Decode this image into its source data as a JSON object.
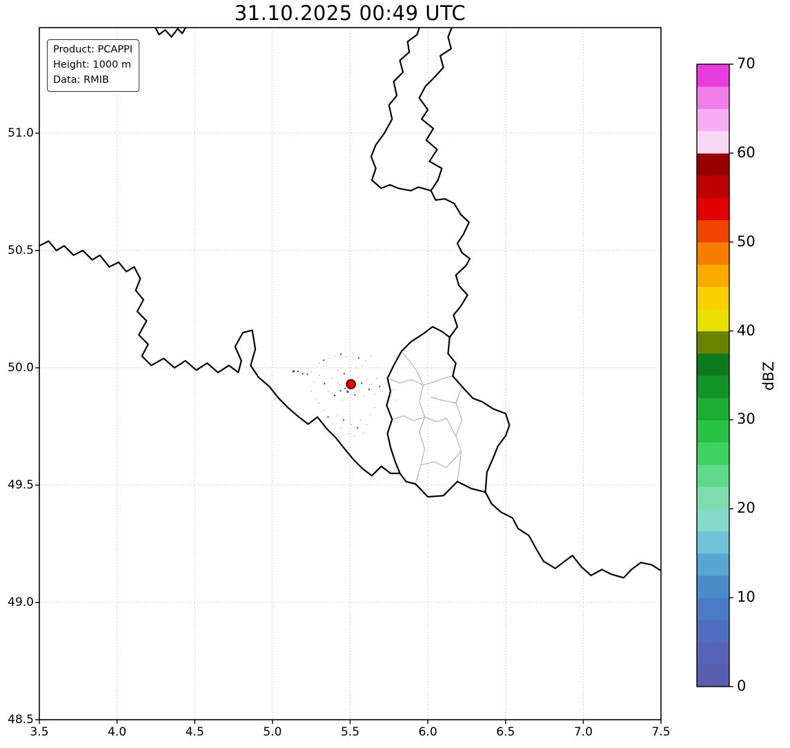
{
  "title": "31.10.2025 00:49 UTC",
  "info_box": {
    "lines": [
      "Product: PCAPPI",
      "Height: 1000 m",
      "Data: RMIB"
    ]
  },
  "chart_data": {
    "type": "radar-reflectivity-map",
    "title": "31.10.2025 00:49 UTC",
    "xlim": [
      3.5,
      7.5
    ],
    "ylim": [
      48.5,
      51.45
    ],
    "x_ticks": {
      "values": [
        3.5,
        4.0,
        4.5,
        5.0,
        5.5,
        6.0,
        6.5,
        7.0,
        7.5
      ],
      "labels": [
        "3.5",
        "4.0",
        "4.5",
        "5.0",
        "5.5",
        "6.0",
        "6.5",
        "7.0",
        "7.5"
      ]
    },
    "y_ticks": {
      "values": [
        48.5,
        49.0,
        49.5,
        50.0,
        50.5,
        51.0
      ],
      "labels": [
        "48.5",
        "49.0",
        "49.5",
        "50.0",
        "50.5",
        "51.0"
      ]
    },
    "grid": {
      "style": "dotted",
      "color": "#b5b5b5"
    },
    "colorbar": {
      "label": "dBZ",
      "min": 0,
      "max": 70,
      "step": 2.5,
      "tick_values": [
        0,
        10,
        20,
        30,
        40,
        50,
        60,
        70
      ],
      "tick_labels": [
        "0",
        "10",
        "20",
        "30",
        "40",
        "50",
        "60",
        "70"
      ],
      "colors": [
        "#585fae",
        "#5663b8",
        "#4f6ec1",
        "#4a7bc4",
        "#4a8cc9",
        "#57a6d4",
        "#6fc4d9",
        "#85d9cd",
        "#7fdcae",
        "#5fd98a",
        "#3ed160",
        "#28c245",
        "#1cab33",
        "#129427",
        "#0c7a1d",
        "#6a8200",
        "#e8e000",
        "#fcd000",
        "#fcaa00",
        "#f97e00",
        "#f04400",
        "#e00000",
        "#c00000",
        "#980000",
        "#f9d7f7",
        "#f7aef3",
        "#f07fe9",
        "#e83ddd"
      ]
    },
    "map": {
      "national_border_color": "#000000",
      "admin_border_color": "#b3b3b3",
      "national_borders": [
        [
          [
            3.5,
            50.52
          ],
          [
            3.56,
            50.54
          ],
          [
            3.61,
            50.5
          ],
          [
            3.66,
            50.52
          ],
          [
            3.72,
            50.48
          ],
          [
            3.78,
            50.5
          ],
          [
            3.84,
            50.46
          ],
          [
            3.89,
            50.48
          ],
          [
            3.95,
            50.43
          ],
          [
            4.01,
            50.45
          ],
          [
            4.06,
            50.41
          ],
          [
            4.11,
            50.43
          ],
          [
            4.15,
            50.38
          ],
          [
            4.12,
            50.33
          ],
          [
            4.17,
            50.29
          ],
          [
            4.13,
            50.24
          ],
          [
            4.19,
            50.2
          ],
          [
            4.14,
            50.14
          ],
          [
            4.2,
            50.1
          ],
          [
            4.16,
            50.05
          ],
          [
            4.22,
            50.01
          ],
          [
            4.3,
            50.04
          ],
          [
            4.37,
            50.0
          ],
          [
            4.44,
            50.03
          ],
          [
            4.51,
            49.99
          ],
          [
            4.58,
            50.02
          ],
          [
            4.65,
            49.98
          ],
          [
            4.72,
            50.01
          ],
          [
            4.78,
            49.98
          ],
          [
            4.8,
            50.03
          ],
          [
            4.76,
            50.09
          ],
          [
            4.81,
            50.15
          ],
          [
            4.87,
            50.16
          ],
          [
            4.89,
            50.08
          ],
          [
            4.86,
            50.01
          ],
          [
            4.91,
            49.96
          ],
          [
            4.98,
            49.92
          ],
          [
            5.04,
            49.87
          ],
          [
            5.1,
            49.83
          ],
          [
            5.17,
            49.79
          ],
          [
            5.23,
            49.76
          ],
          [
            5.29,
            49.79
          ],
          [
            5.35,
            49.74
          ],
          [
            5.41,
            49.7
          ],
          [
            5.47,
            49.65
          ],
          [
            5.52,
            49.61
          ],
          [
            5.58,
            49.57
          ],
          [
            5.64,
            49.54
          ],
          [
            5.7,
            49.58
          ],
          [
            5.76,
            49.55
          ],
          [
            5.82,
            49.55
          ]
        ],
        [
          [
            5.82,
            49.55
          ],
          [
            5.79,
            49.6
          ],
          [
            5.76,
            49.66
          ],
          [
            5.74,
            49.72
          ],
          [
            5.77,
            49.78
          ],
          [
            5.735,
            49.84
          ],
          [
            5.76,
            49.9
          ],
          [
            5.74,
            49.955
          ],
          [
            5.78,
            50.01
          ],
          [
            5.83,
            50.07
          ],
          [
            5.89,
            50.11
          ],
          [
            5.97,
            50.145
          ],
          [
            6.03,
            50.175
          ],
          [
            6.09,
            50.155
          ],
          [
            6.14,
            50.13
          ],
          [
            6.13,
            50.06
          ],
          [
            6.18,
            50.02
          ],
          [
            6.16,
            49.965
          ],
          [
            6.22,
            49.92
          ],
          [
            6.29,
            49.87
          ],
          [
            6.35,
            49.855
          ],
          [
            6.42,
            49.825
          ],
          [
            6.5,
            49.805
          ],
          [
            6.525,
            49.755
          ],
          [
            6.5,
            49.71
          ],
          [
            6.45,
            49.665
          ],
          [
            6.42,
            49.615
          ],
          [
            6.38,
            49.555
          ],
          [
            6.37,
            49.47
          ],
          [
            6.28,
            49.485
          ],
          [
            6.19,
            49.515
          ],
          [
            6.1,
            49.455
          ],
          [
            6.0,
            49.45
          ],
          [
            5.92,
            49.505
          ],
          [
            5.86,
            49.515
          ],
          [
            5.82,
            49.55
          ]
        ],
        [
          [
            6.14,
            50.13
          ],
          [
            6.19,
            50.175
          ],
          [
            6.165,
            50.225
          ],
          [
            6.21,
            50.26
          ],
          [
            6.255,
            50.31
          ],
          [
            6.2,
            50.35
          ],
          [
            6.18,
            50.395
          ],
          [
            6.245,
            50.435
          ],
          [
            6.27,
            50.465
          ],
          [
            6.22,
            50.49
          ],
          [
            6.19,
            50.53
          ],
          [
            6.23,
            50.57
          ],
          [
            6.265,
            50.62
          ],
          [
            6.21,
            50.655
          ],
          [
            6.17,
            50.7
          ],
          [
            6.11,
            50.72
          ],
          [
            6.05,
            50.715
          ],
          [
            6.02,
            50.755
          ]
        ],
        [
          [
            6.02,
            50.755
          ],
          [
            6.065,
            50.8
          ],
          [
            6.09,
            50.85
          ],
          [
            6.01,
            50.88
          ],
          [
            6.06,
            50.93
          ],
          [
            5.99,
            50.97
          ],
          [
            6.035,
            51.02
          ],
          [
            5.96,
            51.06
          ],
          [
            6.0,
            51.1
          ],
          [
            5.945,
            51.15
          ],
          [
            5.985,
            51.2
          ],
          [
            6.045,
            51.24
          ],
          [
            6.1,
            51.28
          ],
          [
            6.08,
            51.33
          ],
          [
            6.15,
            51.36
          ],
          [
            6.13,
            51.41
          ],
          [
            6.16,
            51.46
          ]
        ],
        [
          [
            6.02,
            50.755
          ],
          [
            5.94,
            50.77
          ],
          [
            5.89,
            50.755
          ],
          [
            5.81,
            50.765
          ],
          [
            5.755,
            50.78
          ],
          [
            5.7,
            50.765
          ],
          [
            5.64,
            50.8
          ],
          [
            5.665,
            50.85
          ],
          [
            5.635,
            50.9
          ],
          [
            5.665,
            50.95
          ],
          [
            5.72,
            51.0
          ],
          [
            5.77,
            51.06
          ],
          [
            5.75,
            51.12
          ],
          [
            5.8,
            51.16
          ],
          [
            5.78,
            51.22
          ],
          [
            5.84,
            51.26
          ],
          [
            5.82,
            51.31
          ],
          [
            5.88,
            51.345
          ],
          [
            5.87,
            51.39
          ],
          [
            5.93,
            51.42
          ],
          [
            5.95,
            51.46
          ]
        ],
        [
          [
            4.24,
            51.46
          ],
          [
            4.27,
            51.42
          ],
          [
            4.31,
            51.44
          ],
          [
            4.35,
            51.41
          ],
          [
            4.39,
            51.445
          ],
          [
            4.42,
            51.425
          ],
          [
            4.45,
            51.46
          ]
        ],
        [
          [
            6.37,
            49.47
          ],
          [
            6.41,
            49.42
          ],
          [
            6.47,
            49.385
          ],
          [
            6.545,
            49.36
          ],
          [
            6.58,
            49.315
          ],
          [
            6.65,
            49.285
          ],
          [
            6.7,
            49.225
          ],
          [
            6.745,
            49.175
          ],
          [
            6.82,
            49.145
          ],
          [
            6.88,
            49.175
          ],
          [
            6.93,
            49.2
          ],
          [
            6.99,
            49.15
          ],
          [
            7.05,
            49.115
          ],
          [
            7.12,
            49.14
          ],
          [
            7.18,
            49.12
          ],
          [
            7.26,
            49.105
          ],
          [
            7.31,
            49.14
          ],
          [
            7.37,
            49.17
          ],
          [
            7.44,
            49.16
          ],
          [
            7.5,
            49.135
          ]
        ]
      ],
      "admin_borders": [
        [
          [
            5.74,
            49.955
          ],
          [
            5.82,
            49.935
          ],
          [
            5.9,
            49.95
          ],
          [
            5.97,
            49.925
          ],
          [
            6.04,
            49.94
          ],
          [
            6.1,
            49.955
          ],
          [
            6.16,
            49.965
          ]
        ],
        [
          [
            5.83,
            50.07
          ],
          [
            5.88,
            50.03
          ],
          [
            5.93,
            49.985
          ],
          [
            5.97,
            49.925
          ]
        ],
        [
          [
            5.97,
            49.925
          ],
          [
            5.945,
            49.855
          ],
          [
            5.98,
            49.79
          ],
          [
            5.945,
            49.725
          ],
          [
            5.98,
            49.655
          ],
          [
            5.955,
            49.585
          ],
          [
            5.92,
            49.505
          ]
        ],
        [
          [
            5.77,
            49.78
          ],
          [
            5.845,
            49.795
          ],
          [
            5.91,
            49.775
          ],
          [
            5.98,
            49.79
          ]
        ],
        [
          [
            6.22,
            49.92
          ],
          [
            6.18,
            49.85
          ],
          [
            6.22,
            49.78
          ],
          [
            6.18,
            49.71
          ],
          [
            6.215,
            49.645
          ],
          [
            6.19,
            49.515
          ]
        ],
        [
          [
            5.98,
            49.79
          ],
          [
            6.06,
            49.77
          ],
          [
            6.12,
            49.785
          ],
          [
            6.18,
            49.71
          ]
        ],
        [
          [
            5.955,
            49.585
          ],
          [
            6.04,
            49.6
          ],
          [
            6.12,
            49.575
          ],
          [
            6.215,
            49.645
          ]
        ],
        [
          [
            6.02,
            49.875
          ],
          [
            6.1,
            49.86
          ],
          [
            6.18,
            49.85
          ]
        ]
      ],
      "radar_site": {
        "lon": 5.505,
        "lat": 49.93,
        "fill": "#e00000",
        "edge": "#5a0000"
      },
      "echo_colors": [
        "#323f90",
        "#3f6ab2"
      ],
      "echoes": [
        [
          5.135,
          49.985,
          3
        ],
        [
          5.165,
          49.985,
          2
        ],
        [
          5.195,
          49.975,
          2
        ],
        [
          5.225,
          49.972,
          2
        ],
        [
          5.25,
          49.982,
          1
        ],
        [
          5.3,
          50.02,
          1
        ],
        [
          5.33,
          50.032,
          2
        ],
        [
          5.365,
          50.04,
          1
        ],
        [
          5.4,
          50.05,
          1
        ],
        [
          5.44,
          50.058,
          2
        ],
        [
          5.475,
          50.048,
          1
        ],
        [
          5.52,
          50.06,
          1
        ],
        [
          5.555,
          50.042,
          2
        ],
        [
          5.6,
          50.03,
          1
        ],
        [
          5.635,
          50.048,
          1
        ],
        [
          5.305,
          49.968,
          1
        ],
        [
          5.335,
          49.932,
          2
        ],
        [
          5.36,
          49.9,
          1
        ],
        [
          5.382,
          49.958,
          1
        ],
        [
          5.4,
          49.882,
          2
        ],
        [
          5.42,
          49.99,
          1
        ],
        [
          5.432,
          49.928,
          1
        ],
        [
          5.448,
          49.862,
          1
        ],
        [
          5.462,
          49.975,
          2
        ],
        [
          5.468,
          49.912,
          2
        ],
        [
          5.488,
          49.945,
          1
        ],
        [
          5.484,
          49.898,
          3
        ],
        [
          5.52,
          49.93,
          1
        ],
        [
          5.53,
          49.885,
          2
        ],
        [
          5.548,
          49.958,
          1
        ],
        [
          5.558,
          49.902,
          1
        ],
        [
          5.574,
          49.934,
          2
        ],
        [
          5.59,
          49.878,
          1
        ],
        [
          5.608,
          49.948,
          1
        ],
        [
          5.622,
          49.908,
          2
        ],
        [
          5.64,
          49.93,
          1
        ],
        [
          5.658,
          49.888,
          1
        ],
        [
          5.672,
          49.954,
          1
        ],
        [
          5.69,
          49.92,
          2
        ],
        [
          5.708,
          49.898,
          1
        ],
        [
          5.728,
          49.934,
          1
        ],
        [
          5.3,
          49.85,
          1
        ],
        [
          5.328,
          49.82,
          1
        ],
        [
          5.358,
          49.79,
          2
        ],
        [
          5.388,
          49.762,
          1
        ],
        [
          5.418,
          49.798,
          1
        ],
        [
          5.44,
          49.742,
          1
        ],
        [
          5.458,
          49.778,
          2
        ],
        [
          5.488,
          49.72,
          1
        ],
        [
          5.508,
          49.758,
          1
        ],
        [
          5.528,
          49.71,
          1
        ],
        [
          5.548,
          49.744,
          2
        ],
        [
          5.568,
          49.778,
          1
        ],
        [
          5.588,
          49.722,
          1
        ],
        [
          5.608,
          49.758,
          1
        ],
        [
          5.63,
          49.8,
          1
        ],
        [
          5.658,
          49.83,
          1
        ],
        [
          5.758,
          49.878,
          1
        ],
        [
          5.778,
          49.908,
          1
        ],
        [
          5.798,
          49.862,
          1
        ],
        [
          5.25,
          49.9,
          1
        ],
        [
          5.268,
          49.938,
          1
        ],
        [
          5.282,
          49.868,
          1
        ],
        [
          5.438,
          49.902,
          2
        ],
        [
          5.42,
          49.935,
          1
        ],
        [
          5.5,
          49.985,
          1
        ],
        [
          5.538,
          50.0,
          1
        ],
        [
          5.578,
          50.008,
          1
        ]
      ]
    }
  }
}
